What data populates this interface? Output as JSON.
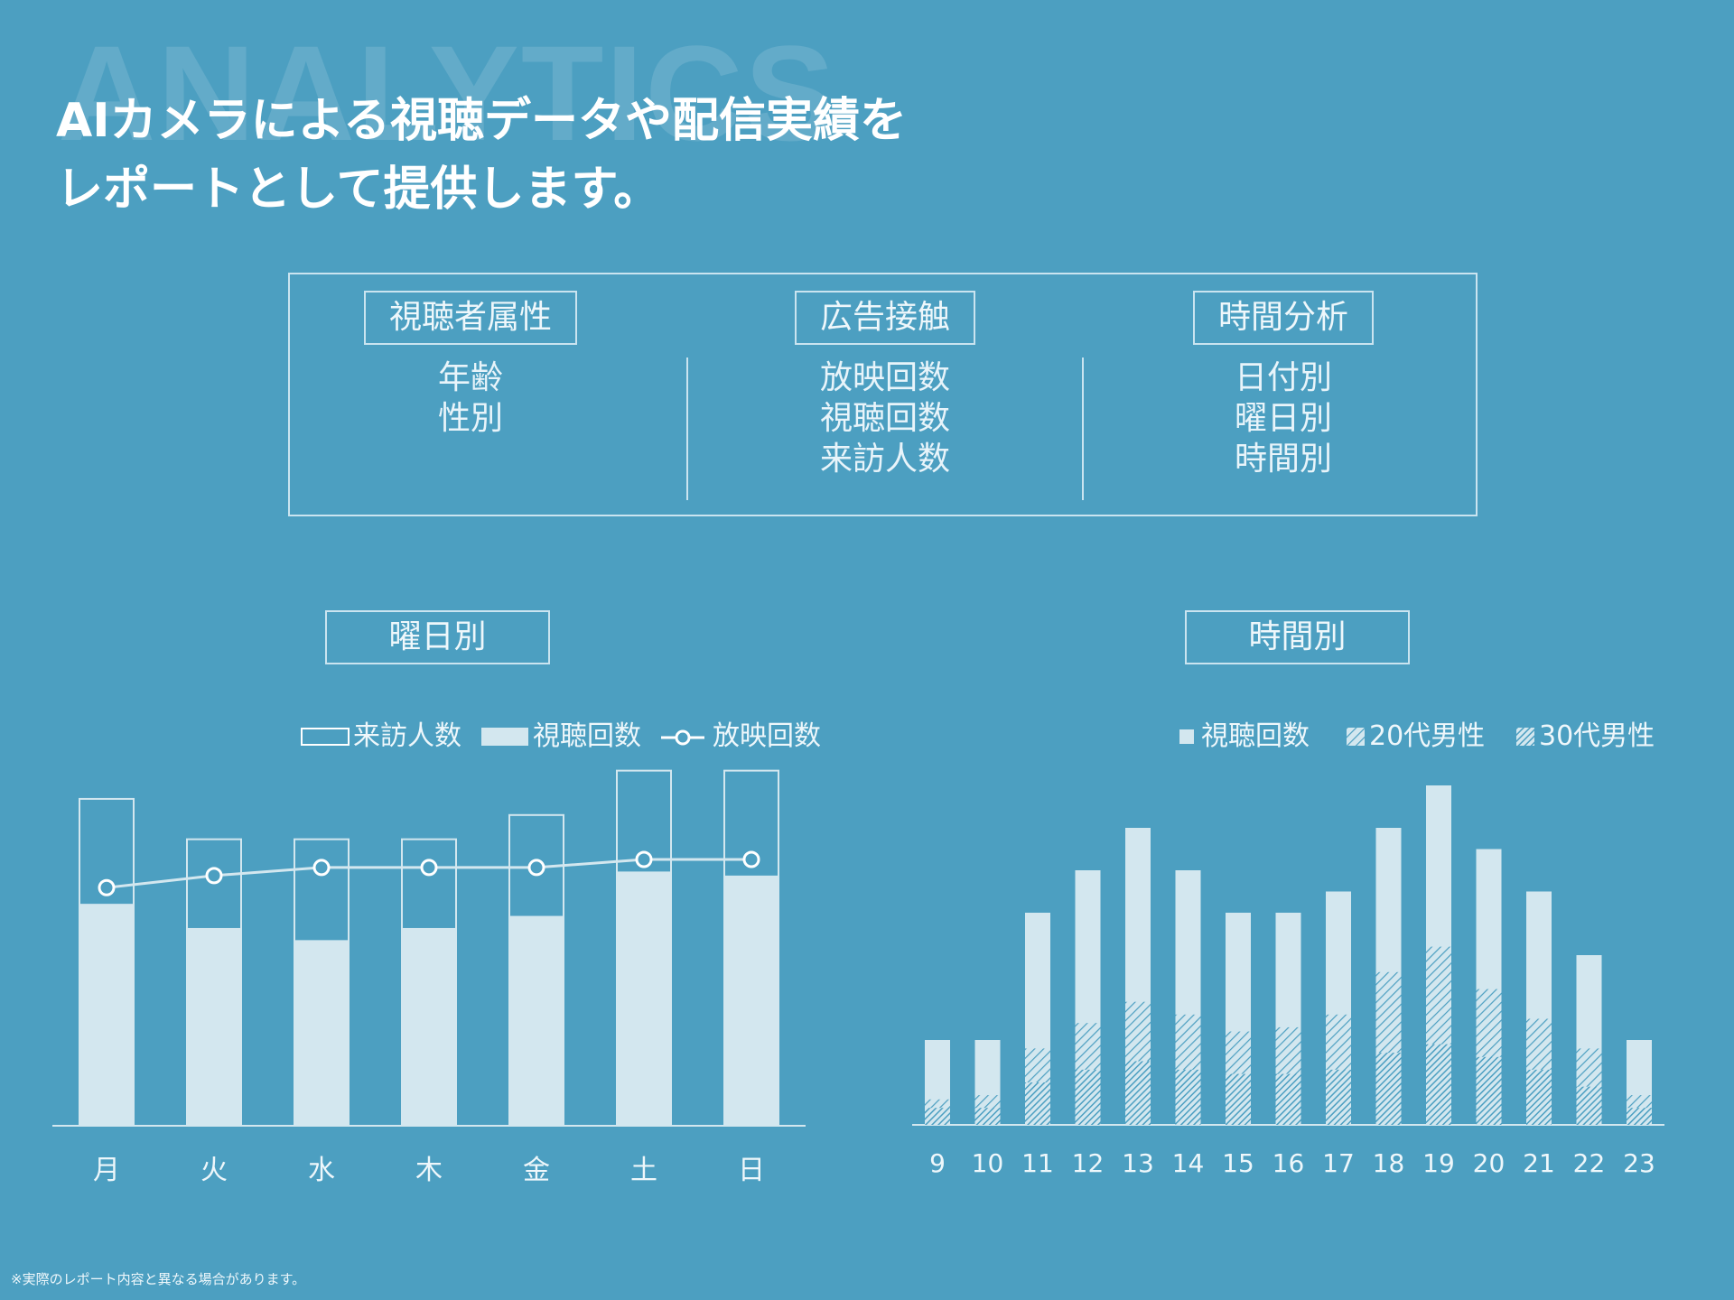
{
  "background_color": "#4c9fc1",
  "watermark": "ANALYTICS",
  "headline": {
    "line1": "AIカメラによる視聴データや配信実績を",
    "line2": "レポートとして提供します。"
  },
  "summary": {
    "columns": [
      {
        "title": "視聴者属性",
        "items": [
          "年齢",
          "性別"
        ]
      },
      {
        "title": "広告接触",
        "items": [
          "放映回数",
          "視聴回数",
          "来訪人数"
        ]
      },
      {
        "title": "時間分析",
        "items": [
          "日付別",
          "曜日別",
          "時間別"
        ]
      }
    ]
  },
  "weekday_chart": {
    "title": "曜日別",
    "legend": {
      "visitors": "来訪人数",
      "views": "視聴回数",
      "broadcasts": "放映回数"
    }
  },
  "hourly_chart": {
    "title": "時間別",
    "legend": {
      "views": "視聴回数",
      "male20s": "20代男性",
      "male30s": "30代男性"
    }
  },
  "footnote": "※実際のレポート内容と異なる場合があります。",
  "chart_data": [
    {
      "type": "bar",
      "title": "曜日別",
      "categories": [
        "月",
        "火",
        "水",
        "木",
        "金",
        "土",
        "日"
      ],
      "ylim": [
        0,
        100
      ],
      "series": [
        {
          "name": "来訪人数",
          "kind": "bar-outline",
          "values": [
            81,
            71,
            71,
            71,
            77,
            88,
            88
          ]
        },
        {
          "name": "視聴回数",
          "kind": "bar-filled",
          "values": [
            55,
            49,
            46,
            49,
            52,
            63,
            62
          ]
        },
        {
          "name": "放映回数",
          "kind": "line-marker",
          "values": [
            59,
            62,
            64,
            64,
            64,
            66,
            66
          ]
        }
      ],
      "legend_position": "top",
      "grid": false
    },
    {
      "type": "bar",
      "title": "時間別",
      "categories": [
        "9",
        "10",
        "11",
        "12",
        "13",
        "14",
        "15",
        "16",
        "17",
        "18",
        "19",
        "20",
        "21",
        "22",
        "23"
      ],
      "ylim": [
        0,
        80
      ],
      "series": [
        {
          "name": "視聴回数",
          "values": [
            20,
            20,
            50,
            60,
            70,
            60,
            50,
            50,
            55,
            70,
            80,
            65,
            55,
            40,
            20
          ]
        },
        {
          "name": "20代男性",
          "values": [
            6,
            7,
            18,
            24,
            29,
            26,
            22,
            23,
            26,
            36,
            42,
            32,
            25,
            18,
            7
          ]
        },
        {
          "name": "30代男性",
          "values": [
            4,
            4,
            10,
            13,
            15,
            13,
            12,
            12,
            13,
            17,
            19,
            16,
            13,
            9,
            4
          ]
        }
      ],
      "legend_position": "top-right",
      "grid": false
    }
  ]
}
